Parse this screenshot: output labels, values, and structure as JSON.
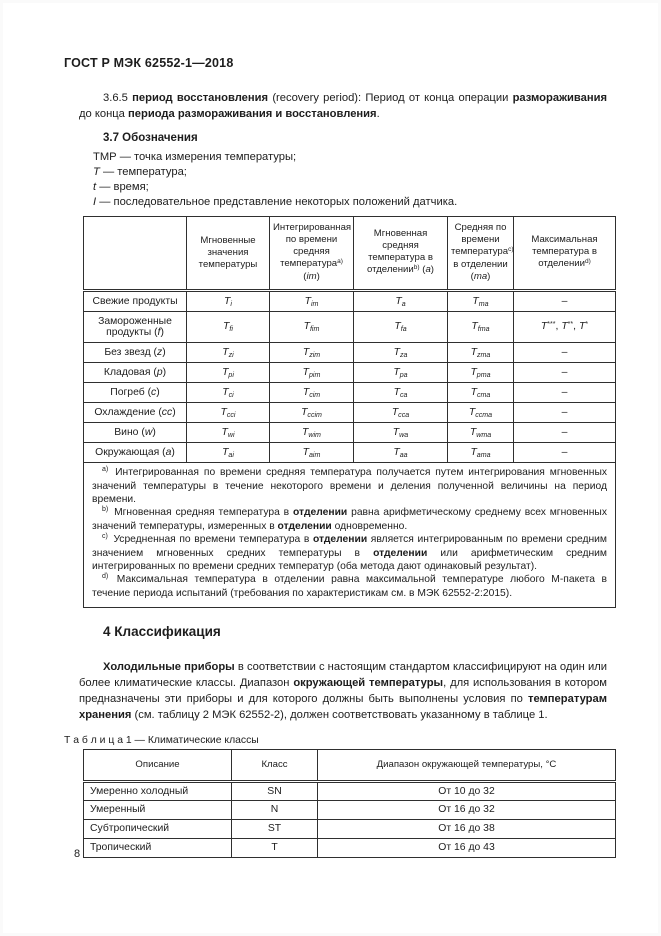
{
  "header": {
    "title": "ГОСТ Р МЭК 62552-1—2018"
  },
  "footer": {
    "page_number": "8"
  },
  "terms": {
    "para_365": [
      {
        "t": "3.6.5 "
      },
      {
        "t": "период восстановления",
        "b": true
      },
      {
        "t": " (recovery period): Период от конца операции "
      },
      {
        "t": "размораживания",
        "b": true
      },
      {
        "t": " до конца "
      },
      {
        "t": "периода размораживания и восстановления",
        "b": true
      },
      {
        "t": "."
      }
    ],
    "section_37_title": "3.7 Обозначения",
    "symbols": [
      [
        {
          "t": "ТМР — точка измерения температуры;"
        }
      ],
      [
        {
          "t": "Т",
          "i": true
        },
        {
          "t": " — температура;"
        }
      ],
      [
        {
          "t": "t",
          "i": true
        },
        {
          "t": " — время;"
        }
      ],
      [
        {
          "t": "I",
          "i": true
        },
        {
          "t": " — последовательное представление некоторых положений датчика."
        }
      ]
    ]
  },
  "table1": {
    "headers": [
      [],
      [
        {
          "t": "Мгновенные значения температуры"
        }
      ],
      [
        {
          "t": "Интегрированная по времени средняя температура"
        },
        {
          "t": "a)",
          "sup": true
        },
        {
          "t": " ("
        },
        {
          "t": "im",
          "i": true
        },
        {
          "t": ")"
        }
      ],
      [
        {
          "t": "Мгновенная средняя температура в отделении"
        },
        {
          "t": "b)",
          "sup": true
        },
        {
          "t": " ("
        },
        {
          "t": "a",
          "i": true
        },
        {
          "t": ")"
        }
      ],
      [
        {
          "t": "Средняя по времени температура"
        },
        {
          "t": "c)",
          "sup": true
        },
        {
          "t": " в отделении ("
        },
        {
          "t": "ma",
          "i": true
        },
        {
          "t": ")"
        }
      ],
      [
        {
          "t": "Максимальная температура в отделении"
        },
        {
          "t": "d)",
          "sup": true
        }
      ]
    ],
    "rows": [
      {
        "label": [
          {
            "t": "Свежие продукты"
          }
        ],
        "cells": [
          [
            {
              "t": "T",
              "i": true
            },
            {
              "t": "i",
              "sub": true,
              "i": true
            }
          ],
          [
            {
              "t": "T",
              "i": true
            },
            {
              "t": "im",
              "sub": true,
              "i": true
            }
          ],
          [
            {
              "t": "T",
              "i": true
            },
            {
              "t": "a",
              "sub": true,
              "i": true
            }
          ],
          [
            {
              "t": "T",
              "i": true
            },
            {
              "t": "ma",
              "sub": true,
              "i": true
            }
          ],
          [
            {
              "t": "–"
            }
          ]
        ]
      },
      {
        "label": [
          {
            "t": "Замороженные продукты ("
          },
          {
            "t": "f",
            "i": true
          },
          {
            "t": ")"
          }
        ],
        "cells": [
          [
            {
              "t": "T",
              "i": true
            },
            {
              "t": "fi",
              "sub": true,
              "i": true
            }
          ],
          [
            {
              "t": "T",
              "i": true
            },
            {
              "t": "fim",
              "sub": true,
              "i": true
            }
          ],
          [
            {
              "t": "T",
              "i": true
            },
            {
              "t": "fa",
              "sub": true,
              "i": true
            }
          ],
          [
            {
              "t": "T",
              "i": true
            },
            {
              "t": "fma",
              "sub": true,
              "i": true
            }
          ],
          [
            {
              "t": "T",
              "i": true
            },
            {
              "t": "***",
              "sup": true
            },
            {
              "t": ", "
            },
            {
              "t": "T",
              "i": true
            },
            {
              "t": "**",
              "sup": true
            },
            {
              "t": ", "
            },
            {
              "t": "T",
              "i": true
            },
            {
              "t": "*",
              "sup": true
            }
          ]
        ]
      },
      {
        "label": [
          {
            "t": "Без звезд ("
          },
          {
            "t": "z",
            "i": true
          },
          {
            "t": ")"
          }
        ],
        "cells": [
          [
            {
              "t": "T",
              "i": true
            },
            {
              "t": "zi",
              "sub": true,
              "i": true
            }
          ],
          [
            {
              "t": "T",
              "i": true
            },
            {
              "t": "zim",
              "sub": true,
              "i": true
            }
          ],
          [
            {
              "t": "T",
              "i": true
            },
            {
              "t": "za",
              "sub": true,
              "i": true
            }
          ],
          [
            {
              "t": "T",
              "i": true
            },
            {
              "t": "zma",
              "sub": true,
              "i": true
            }
          ],
          [
            {
              "t": "–"
            }
          ]
        ]
      },
      {
        "label": [
          {
            "t": "Кладовая ("
          },
          {
            "t": "p",
            "i": true
          },
          {
            "t": ")"
          }
        ],
        "cells": [
          [
            {
              "t": "T",
              "i": true
            },
            {
              "t": "pi",
              "sub": true,
              "i": true
            }
          ],
          [
            {
              "t": "T",
              "i": true
            },
            {
              "t": "pim",
              "sub": true,
              "i": true
            }
          ],
          [
            {
              "t": "T",
              "i": true
            },
            {
              "t": "pa",
              "sub": true,
              "i": true
            }
          ],
          [
            {
              "t": "T",
              "i": true
            },
            {
              "t": "pma",
              "sub": true,
              "i": true
            }
          ],
          [
            {
              "t": "–"
            }
          ]
        ]
      },
      {
        "label": [
          {
            "t": "Погреб ("
          },
          {
            "t": "c",
            "i": true
          },
          {
            "t": ")"
          }
        ],
        "cells": [
          [
            {
              "t": "T",
              "i": true
            },
            {
              "t": "ci",
              "sub": true,
              "i": true
            }
          ],
          [
            {
              "t": "T",
              "i": true
            },
            {
              "t": "cim",
              "sub": true,
              "i": true
            }
          ],
          [
            {
              "t": "T",
              "i": true
            },
            {
              "t": "ca",
              "sub": true,
              "i": true
            }
          ],
          [
            {
              "t": "T",
              "i": true
            },
            {
              "t": "cma",
              "sub": true,
              "i": true
            }
          ],
          [
            {
              "t": "–"
            }
          ]
        ]
      },
      {
        "label": [
          {
            "t": "Охлаждение ("
          },
          {
            "t": "cc",
            "i": true
          },
          {
            "t": ")"
          }
        ],
        "cells": [
          [
            {
              "t": "T",
              "i": true
            },
            {
              "t": "cci",
              "sub": true,
              "i": true
            }
          ],
          [
            {
              "t": "T",
              "i": true
            },
            {
              "t": "ccim",
              "sub": true,
              "i": true
            }
          ],
          [
            {
              "t": "T",
              "i": true
            },
            {
              "t": "cca",
              "sub": true,
              "i": true
            }
          ],
          [
            {
              "t": "T",
              "i": true
            },
            {
              "t": "ccma",
              "sub": true,
              "i": true
            }
          ],
          [
            {
              "t": "–"
            }
          ]
        ]
      },
      {
        "label": [
          {
            "t": "Вино ("
          },
          {
            "t": "w",
            "i": true
          },
          {
            "t": ")"
          }
        ],
        "cells": [
          [
            {
              "t": "T",
              "i": true
            },
            {
              "t": "wi",
              "sub": true,
              "i": true
            }
          ],
          [
            {
              "t": "T",
              "i": true
            },
            {
              "t": "wim",
              "sub": true,
              "i": true
            }
          ],
          [
            {
              "t": "T",
              "i": true
            },
            {
              "t": "wa",
              "sub": true,
              "i": true
            }
          ],
          [
            {
              "t": "T",
              "i": true
            },
            {
              "t": "wma",
              "sub": true,
              "i": true
            }
          ],
          [
            {
              "t": "–"
            }
          ]
        ]
      },
      {
        "label": [
          {
            "t": "Окружающая ("
          },
          {
            "t": "a",
            "i": true
          },
          {
            "t": ")"
          }
        ],
        "cells": [
          [
            {
              "t": "T",
              "i": true
            },
            {
              "t": "ai",
              "sub": true,
              "i": true
            }
          ],
          [
            {
              "t": "T",
              "i": true
            },
            {
              "t": "aim",
              "sub": true,
              "i": true
            }
          ],
          [
            {
              "t": "T",
              "i": true
            },
            {
              "t": "aa",
              "sub": true,
              "i": true
            }
          ],
          [
            {
              "t": "T",
              "i": true
            },
            {
              "t": "ama",
              "sub": true,
              "i": true
            }
          ],
          [
            {
              "t": "–"
            }
          ]
        ]
      }
    ],
    "footnotes": [
      {
        "mark": "a)",
        "runs": [
          {
            "t": " Интегрированная по времени средняя температура получается путем интегрирования мгновенных значений температуры в течение некоторого времени и деления полученной величины на период времени."
          }
        ]
      },
      {
        "mark": "b)",
        "runs": [
          {
            "t": " Мгновенная средняя температура в "
          },
          {
            "t": "отделении",
            "b": true
          },
          {
            "t": " равна арифметическому среднему всех мгновенных значений температуры, измеренных в "
          },
          {
            "t": "отделении",
            "b": true
          },
          {
            "t": " одновременно."
          }
        ]
      },
      {
        "mark": "c)",
        "runs": [
          {
            "t": " Усредненная по времени температура в "
          },
          {
            "t": "отделении",
            "b": true
          },
          {
            "t": " является интегрированным по времени средним значением мгновенных средних температуры в "
          },
          {
            "t": "отделении",
            "b": true
          },
          {
            "t": " или арифметическим средним интегрированных по времени средних температур (оба метода дают одинаковый результат)."
          }
        ]
      },
      {
        "mark": "d)",
        "runs": [
          {
            "t": " Максимальная температура в отделении равна максимальной температуре любого М-пакета в течение периода испытаний (требования по характеристикам см. в МЭК 62552-2:2015)."
          }
        ]
      }
    ]
  },
  "classification": {
    "title": "4 Классификация",
    "paragraph": [
      {
        "t": "Холодильные приборы",
        "b": true
      },
      {
        "t": " в соответствии с настоящим стандартом классифицируют на один или более климатические классы. Диапазон "
      },
      {
        "t": "окружающей температуры",
        "b": true
      },
      {
        "t": ", для использования в котором предназначены эти приборы и для которого должны быть выполнены условия по "
      },
      {
        "t": "температурам хранения",
        "b": true
      },
      {
        "t": " (см. таблицу 2 МЭК 62552-2), должен соответствовать указанному в таблице 1."
      }
    ],
    "table_caption": "Т а б л и ц а 1 — Климатические классы"
  },
  "table2": {
    "headers": [
      "Описание",
      "Класс",
      "Диапазон окружающей температуры, °С"
    ],
    "rows": [
      [
        "Умеренно холодный",
        "SN",
        "От 10 до 32"
      ],
      [
        "Умеренный",
        "N",
        "От 16 до 32"
      ],
      [
        "Субтропический",
        "ST",
        "От 16 до 38"
      ],
      [
        "Тропический",
        "Т",
        "От 16 до 43"
      ]
    ]
  }
}
